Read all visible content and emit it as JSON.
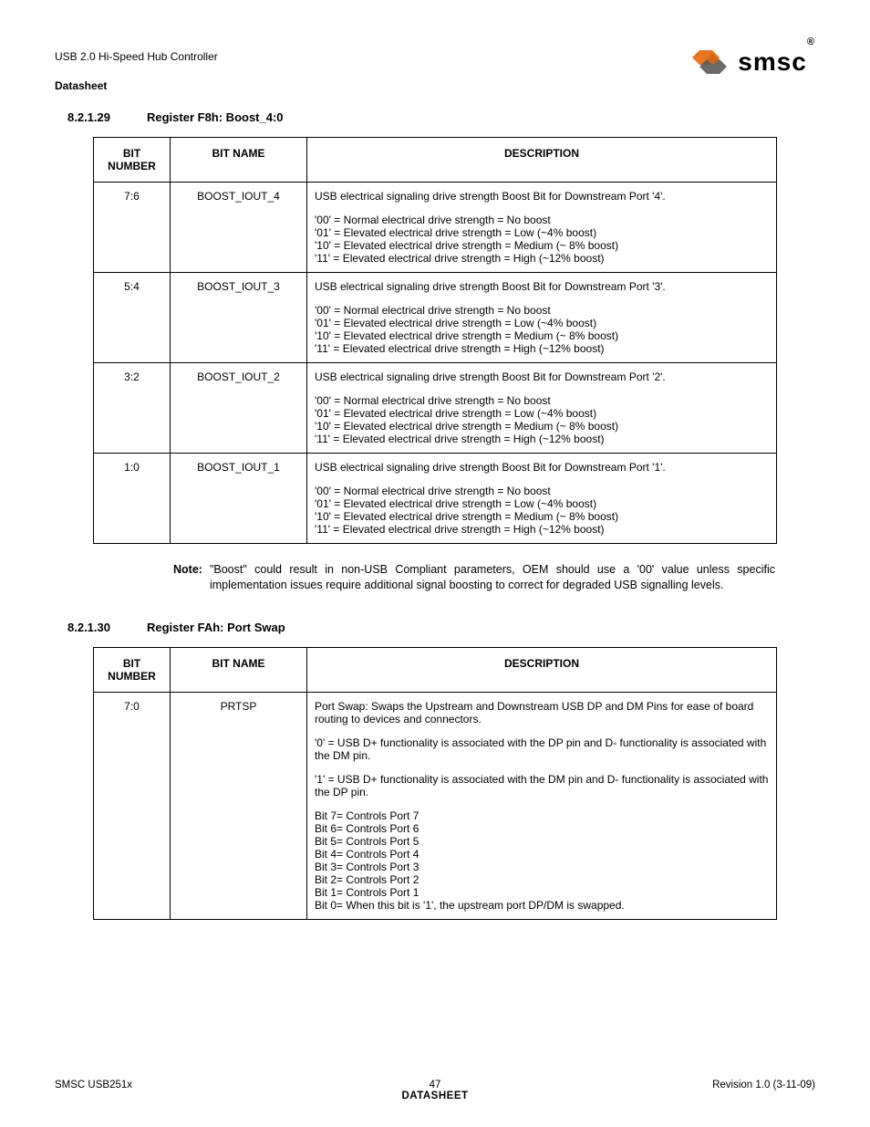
{
  "header": {
    "title": "USB 2.0 Hi-Speed Hub Controller",
    "subtitle": "Datasheet",
    "logo_text": "smsc",
    "logo_icon_color1": "#e87722",
    "logo_icon_color2": "#5a5a5a"
  },
  "section1": {
    "number": "8.2.1.29",
    "title": "Register F8h: Boost_4:0",
    "columns": [
      "BIT NUMBER",
      "BIT NAME",
      "DESCRIPTION"
    ],
    "rows": [
      {
        "bit": "7:6",
        "name": "BOOST_IOUT_4",
        "desc_intro": "USB electrical signaling drive strength Boost Bit for Downstream Port '4'.",
        "desc_lines": [
          "'00' = Normal electrical drive strength = No boost",
          "'01' = Elevated electrical drive strength = Low (~4% boost)",
          "'10' = Elevated electrical drive strength = Medium (~ 8% boost)",
          "'11' = Elevated electrical drive strength = High (~12% boost)"
        ]
      },
      {
        "bit": "5:4",
        "name": "BOOST_IOUT_3",
        "desc_intro": "USB electrical signaling drive strength Boost Bit for Downstream Port '3'.",
        "desc_lines": [
          "'00' = Normal electrical drive strength = No boost",
          "'01' = Elevated electrical drive strength = Low (~4% boost)",
          "'10' = Elevated electrical drive strength = Medium (~ 8% boost)",
          "'11' = Elevated electrical drive strength = High (~12% boost)"
        ]
      },
      {
        "bit": "3:2",
        "name": "BOOST_IOUT_2",
        "desc_intro": "USB electrical signaling drive strength Boost Bit for Downstream Port '2'.",
        "desc_lines": [
          "'00' = Normal electrical drive strength = No boost",
          "'01' = Elevated electrical drive strength = Low (~4% boost)",
          "'10' = Elevated electrical drive strength = Medium (~ 8% boost)",
          "'11' = Elevated electrical drive strength = High (~12% boost)"
        ]
      },
      {
        "bit": "1:0",
        "name": "BOOST_IOUT_1",
        "desc_intro": "USB electrical signaling drive strength Boost Bit for Downstream Port '1'.",
        "desc_lines": [
          "'00' = Normal electrical drive strength = No boost",
          "'01' = Elevated electrical drive strength = Low (~4% boost)",
          "'10' = Elevated electrical drive strength = Medium (~ 8% boost)",
          "'11' = Elevated electrical drive strength = High (~12% boost)"
        ]
      }
    ],
    "note_label": "Note:",
    "note_text": "\"Boost\" could result in non-USB Compliant parameters, OEM should use a '00' value unless specific implementation issues require additional signal boosting to correct for degraded USB signalling levels."
  },
  "section2": {
    "number": "8.2.1.30",
    "title": "Register FAh: Port Swap",
    "columns": [
      "BIT NUMBER",
      "BIT NAME",
      "DESCRIPTION"
    ],
    "rows": [
      {
        "bit": "7:0",
        "name": "PRTSP",
        "blocks": [
          "Port Swap: Swaps the Upstream and Downstream USB DP and DM Pins for ease of board routing to devices and connectors.",
          "'0' = USB D+ functionality is associated with the DP pin and D- functionality is associated with the DM pin.",
          "'1' = USB D+ functionality is associated with the DM pin and D- functionality is associated with the DP pin."
        ],
        "bit_lines": [
          "Bit 7= Controls Port 7",
          "Bit 6= Controls Port 6",
          "Bit 5= Controls Port 5",
          "Bit 4= Controls Port 4",
          "Bit 3= Controls Port 3",
          "Bit 2= Controls Port 2",
          "Bit 1= Controls Port 1",
          "Bit 0= When this bit is '1', the upstream port DP/DM is swapped."
        ]
      }
    ]
  },
  "footer": {
    "left": "SMSC USB251x",
    "center_page": "47",
    "center_label": "DATASHEET",
    "right": "Revision 1.0 (3-11-09)"
  }
}
